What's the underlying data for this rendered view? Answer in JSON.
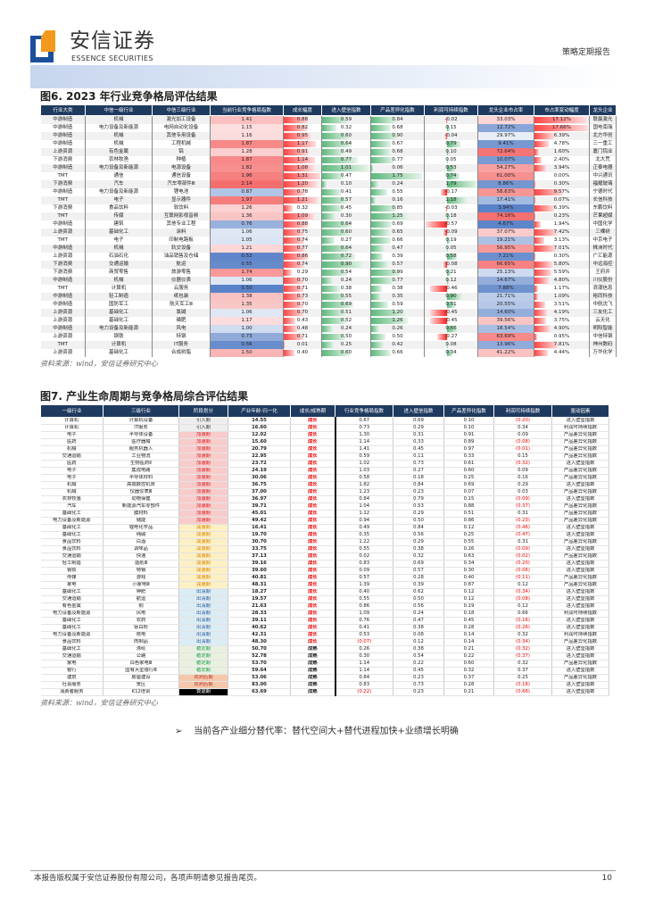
{
  "header": {
    "brand_cn": "安信证券",
    "brand_en": "ESSENCE SECURITIES",
    "report_type": "策略定期报告"
  },
  "fig6": {
    "title": "图6. 2023 年行业竞争格局评估结果",
    "source": "资料来源：wind，安信证券研究中心",
    "columns": [
      "行业大类",
      "中信一级行业",
      "中信三级行业",
      "当前行业竞争格局指数",
      "成长幅度",
      "进入壁垒指数",
      "产品差异化指数",
      "利润可持续指数",
      "龙头企业市占率",
      "市占率变动幅度",
      "龙头企业"
    ],
    "rows": [
      [
        "中游制造",
        "机械",
        "激光加工设备",
        "1.41",
        "0.88",
        "0.59",
        "0.84",
        "-0.02",
        "33.03%",
        "17.12%",
        "联赢激光"
      ],
      [
        "中游制造",
        "电力设备及新能源",
        "电网自动化设备",
        "1.15",
        "0.82",
        "0.32",
        "0.68",
        "0.15",
        "12.72%",
        "17.66%",
        "国电南瑞"
      ],
      [
        "中游制造",
        "机械",
        "其他专用设备",
        "1.16",
        "0.95",
        "0.60",
        "0.90",
        "-0.04",
        "29.97%",
        "6.39%",
        "北方华创"
      ],
      [
        "中游制造",
        "机械",
        "工程机械",
        "1.87",
        "1.17",
        "0.64",
        "0.67",
        "0.79",
        "9.41%",
        "4.78%",
        "三一重工"
      ],
      [
        "上游资源",
        "有色金属",
        "铝",
        "1.28",
        "0.91",
        "0.49",
        "0.68",
        "0.10",
        "72.64%",
        "1.60%",
        "厦门钨业"
      ],
      [
        "下游消费",
        "农林牧渔",
        "种植",
        "1.87",
        "1.14",
        "0.77",
        "0.77",
        "0.05",
        "10.07%",
        "2.40%",
        "北大荒"
      ],
      [
        "中游制造",
        "电力设备及新能源",
        "电源设备",
        "1.82",
        "1.08",
        "1.01",
        "0.06",
        "0.53",
        "54.27%",
        "3.94%",
        "正泰电器"
      ],
      [
        "TMT",
        "通信",
        "通信设备",
        "1.96",
        "1.31",
        "0.47",
        "1.75",
        "0.74",
        "61.00%",
        "0.00%",
        "中兴通讯"
      ],
      [
        "下游消费",
        "汽车",
        "汽车零部件Ⅲ",
        "2.14",
        "1.20",
        "0.10",
        "0.24",
        "1.79",
        "8.86%",
        "0.30%",
        "福耀玻璃"
      ],
      [
        "中游制造",
        "电力设备及新能源",
        "锂电池",
        "0.87",
        "0.78",
        "0.41",
        "0.55",
        "-0.17",
        "58.63%",
        "9.57%",
        "宁德时代"
      ],
      [
        "TMT",
        "电子",
        "显示器件",
        "1.97",
        "1.21",
        "0.57",
        "0.16",
        "1.18",
        "17.41%",
        "0.07%",
        "长信科技"
      ],
      [
        "下游消费",
        "食品饮料",
        "软饮料",
        "1.26",
        "0.32",
        "0.45",
        "0.85",
        "-0.03",
        "3.94%",
        "6.39%",
        "东鹏饮料"
      ],
      [
        "TMT",
        "传媒",
        "互联网影视音频",
        "1.36",
        "1.09",
        "0.30",
        "1.25",
        "0.18",
        "74.16%",
        "0.23%",
        "芒果超媒"
      ],
      [
        "中游制造",
        "建筑",
        "其他专业工程",
        "0.76",
        "0.88",
        "0.64",
        "0.69",
        "-0.57",
        "4.67%",
        "1.94%",
        "中国化学"
      ],
      [
        "上游资源",
        "基础化工",
        "涂料",
        "1.06",
        "0.75",
        "0.60",
        "0.65",
        "-0.09",
        "37.07%",
        "7.42%",
        "三棵树"
      ],
      [
        "TMT",
        "电子",
        "印制电路板",
        "1.05",
        "0.74",
        "0.27",
        "0.66",
        "0.19",
        "19.21%",
        "3.13%",
        "中京电子"
      ],
      [
        "中游制造",
        "机械",
        "轨交设备",
        "1.21",
        "0.77",
        "0.64",
        "0.47",
        "0.05",
        "56.95%",
        "7.01%",
        "株洲时代"
      ],
      [
        "上游资源",
        "石油石化",
        "油品销售及仓储",
        "0.52",
        "0.86",
        "0.72",
        "0.39",
        "0.58",
        "7.21%",
        "0.30%",
        "广汇能源"
      ],
      [
        "下游消费",
        "交通运输",
        "航运",
        "0.55",
        "0.74",
        "0.90",
        "0.57",
        "-0.08",
        "66.65%",
        "5.80%",
        "中远海控"
      ],
      [
        "下游消费",
        "商贸零售",
        "旅游零售",
        "1.74",
        "0.29",
        "0.54",
        "0.99",
        "0.21",
        "25.13%",
        "5.59%",
        "王府井"
      ],
      [
        "中游制造",
        "机械",
        "仪器仪表",
        "1.06",
        "0.70",
        "0.24",
        "0.77",
        "0.12",
        "14.67%",
        "4.80%",
        "川仪股份"
      ],
      [
        "TMT",
        "计算机",
        "云服务",
        "0.50",
        "0.71",
        "0.38",
        "0.38",
        "-0.46",
        "7.88%",
        "1.17%",
        "浪潮信息"
      ],
      [
        "中游制造",
        "轻工制造",
        "纸包装",
        "1.38",
        "0.73",
        "0.55",
        "0.35",
        "0.90",
        "21.71%",
        "1.09%",
        "裕同科技"
      ],
      [
        "中游制造",
        "国防军工",
        "航天军工Ⅲ",
        "1.35",
        "0.70",
        "0.69",
        "0.59",
        "0.51",
        "20.55%",
        "3.51%",
        "中航沈飞"
      ],
      [
        "上游资源",
        "基础化工",
        "氯碱",
        "1.06",
        "0.70",
        "0.51",
        "1.20",
        "-0.45",
        "14.60%",
        "4.19%",
        "三友化工"
      ],
      [
        "上游资源",
        "基础化工",
        "磷肥",
        "1.17",
        "0.43",
        "0.52",
        "1.26",
        "-0.45",
        "39.56%",
        "3.75%",
        "云天化"
      ],
      [
        "中游制造",
        "电力设备及新能源",
        "风电",
        "1.00",
        "0.48",
        "0.24",
        "0.26",
        "0.66",
        "18.54%",
        "4.90%",
        "明阳智能"
      ],
      [
        "上游资源",
        "钢铁",
        "特钢",
        "0.73",
        "0.71",
        "0.50",
        "0.50",
        "-0.27",
        "63.69%",
        "0.95%",
        "中信特钢"
      ],
      [
        "TMT",
        "计算机",
        "IT服务",
        "0.56",
        "0.01",
        "0.25",
        "0.42",
        "0.08",
        "13.96%",
        "7.81%",
        "神州数码"
      ],
      [
        "上游资源",
        "基础化工",
        "合成树脂",
        "1.50",
        "0.40",
        "0.60",
        "0.66",
        "0.34",
        "41.22%",
        "4.44%",
        "万华化学"
      ]
    ]
  },
  "fig7": {
    "title": "图7. 产业生命周期与竞争格局综合评估结果",
    "source": "资料来源：wind，安信证券研究中心",
    "columns": [
      "一级行业",
      "三级行业",
      "阶段划分",
      "产业年龄-归一化",
      "成长/成熟期",
      "行业竞争格局指数",
      "进入壁垒指数",
      "产品差异化指数",
      "利润可持续指数",
      "驱动因素"
    ],
    "stage_colors": {
      "引入期": "#eeeeee",
      "加速期": "#f9cccc",
      "减速期": "#fdf0c4",
      "出清期": "#dbecf4",
      "稳定期": "#e9f0e0",
      "成熟后期": "#f6c8ab",
      "衰退期": "#000000"
    },
    "stage_text_colors": {
      "引入期": "#333333",
      "加速期": "#e0242a",
      "减速期": "#e08a00",
      "出清期": "#2a5f9e",
      "稳定期": "#1aa04a",
      "成熟后期": "#c0392b",
      "衰退期": "#ffffff"
    },
    "rows": [
      [
        "计算机",
        "计算机设备",
        "引入期",
        "14.55",
        "成长",
        "0.67",
        "0.69",
        "0.10",
        "(0.20)",
        "进入壁垒指数"
      ],
      [
        "计算机",
        "IT服务",
        "引入期",
        "16.60",
        "成长",
        "0.73",
        "0.29",
        "0.10",
        "0.34",
        "利润可持续指数"
      ],
      [
        "电子",
        "半导体设备",
        "加速期",
        "12.02",
        "成长",
        "1.30",
        "0.31",
        "0.91",
        "0.09",
        "产品差异化指数"
      ],
      [
        "医药",
        "医疗器械",
        "加速期",
        "15.60",
        "成长",
        "1.14",
        "0.33",
        "0.89",
        "(0.08)",
        "产品差异化指数"
      ],
      [
        "机械",
        "服务机器人",
        "加速期",
        "20.79",
        "成长",
        "1.41",
        "0.45",
        "0.97",
        "(0.01)",
        "产品差异化指数"
      ],
      [
        "交通运输",
        "工业物流",
        "加速期",
        "22.95",
        "成长",
        "0.59",
        "0.11",
        "0.33",
        "0.15",
        "产品差异化指数"
      ],
      [
        "医药",
        "生物医药Ⅱ",
        "加速期",
        "23.72",
        "成长",
        "1.02",
        "0.73",
        "0.61",
        "(0.32)",
        "进入壁垒指数"
      ],
      [
        "电子",
        "集成电路",
        "加速期",
        "24.19",
        "成长",
        "1.03",
        "0.27",
        "0.60",
        "0.09",
        "产品差异化指数"
      ],
      [
        "电子",
        "半导体材料",
        "加速期",
        "30.06",
        "成长",
        "0.58",
        "0.18",
        "0.25",
        "0.16",
        "产品差异化指数"
      ],
      [
        "机械",
        "高端数控机床",
        "加速期",
        "36.75",
        "成长",
        "1.82",
        "0.84",
        "0.69",
        "0.29",
        "进入壁垒指数"
      ],
      [
        "机械",
        "仪器仪表Ⅲ",
        "加速期",
        "37.00",
        "成长",
        "1.23",
        "0.23",
        "0.07",
        "0.03",
        "产品差异化指数"
      ],
      [
        "农林牧渔",
        "动物保健",
        "加速期",
        "36.97",
        "成长",
        "0.84",
        "0.79",
        "0.15",
        "(0.09)",
        "进入壁垒指数"
      ],
      [
        "汽车",
        "新能源汽车零部件",
        "加速期",
        "39.71",
        "成长",
        "1.04",
        "0.53",
        "0.88",
        "(0.37)",
        "产品差异化指数"
      ],
      [
        "基础化工",
        "膜材料",
        "加速期",
        "45.01",
        "成长",
        "1.12",
        "0.29",
        "0.51",
        "0.31",
        "产品差异化指数"
      ],
      [
        "电力设备及新能源",
        "储能",
        "加速期",
        "49.42",
        "成长",
        "0.94",
        "0.50",
        "0.86",
        "(0.23)",
        "产品差异化指数"
      ],
      [
        "基础化工",
        "锂电化学品",
        "减速期",
        "16.41",
        "成长",
        "0.49",
        "0.84",
        "0.12",
        "(0.46)",
        "进入壁垒指数"
      ],
      [
        "基础化工",
        "纯碱",
        "减速期",
        "19.70",
        "成长",
        "0.35",
        "0.56",
        "0.25",
        "(0.47)",
        "进入壁垒指数"
      ],
      [
        "食品饮料",
        "白酒",
        "减速期",
        "30.70",
        "成长",
        "1.22",
        "0.29",
        "0.55",
        "0.31",
        "产品差异化指数"
      ],
      [
        "食品饮料",
        "调味品",
        "减速期",
        "33.75",
        "成长",
        "0.55",
        "0.38",
        "0.26",
        "(0.09)",
        "进入壁垒指数"
      ],
      [
        "交通运输",
        "快递",
        "减速期",
        "37.13",
        "成长",
        "0.02",
        "0.32",
        "0.63",
        "(0.02)",
        "产品差异化指数"
      ],
      [
        "轻工制造",
        "造纸Ⅲ",
        "减速期",
        "39.16",
        "成长",
        "0.83",
        "0.69",
        "0.34",
        "(0.20)",
        "进入壁垒指数"
      ],
      [
        "钢铁",
        "特钢",
        "减速期",
        "39.60",
        "成长",
        "0.09",
        "0.57",
        "0.30",
        "(0.06)",
        "进入壁垒指数"
      ],
      [
        "传媒",
        "游戏",
        "减速期",
        "40.81",
        "成长",
        "0.57",
        "0.28",
        "0.40",
        "(0.11)",
        "产品差异化指数"
      ],
      [
        "家电",
        "小家电Ⅲ",
        "减速期",
        "48.31",
        "成长",
        "1.39",
        "0.39",
        "0.87",
        "0.12",
        "产品差异化指数"
      ],
      [
        "基础化工",
        "钾肥",
        "出清期",
        "18.27",
        "成长",
        "0.40",
        "0.62",
        "0.12",
        "(0.34)",
        "进入壁垒指数"
      ],
      [
        "交通运输",
        "航运",
        "出清期",
        "19.57",
        "成长",
        "0.55",
        "0.50",
        "0.12",
        "(0.08)",
        "进入壁垒指数"
      ],
      [
        "有色金属",
        "铜",
        "出清期",
        "21.63",
        "成长",
        "0.86",
        "0.56",
        "0.19",
        "0.12",
        "进入壁垒指数"
      ],
      [
        "电力设备及新能源",
        "风电",
        "出清期",
        "28.33",
        "成长",
        "1.09",
        "0.24",
        "0.18",
        "0.66",
        "利润可持续指数"
      ],
      [
        "基础化工",
        "农药",
        "出清期",
        "39.11",
        "成长",
        "0.76",
        "0.47",
        "0.45",
        "(0.16)",
        "进入壁垒指数"
      ],
      [
        "基础化工",
        "钛白粉",
        "出清期",
        "40.62",
        "成长",
        "0.41",
        "0.38",
        "0.28",
        "(0.26)",
        "进入壁垒指数"
      ],
      [
        "电力设备及新能源",
        "核电",
        "出清期",
        "42.31",
        "成长",
        "0.53",
        "0.08",
        "0.14",
        "0.32",
        "利润可持续指数"
      ],
      [
        "食品饮料",
        "肉制品",
        "出清期",
        "48.30",
        "成长",
        "(0.07)",
        "0.12",
        "0.14",
        "(0.34)",
        "产品差异化指数"
      ],
      [
        "基础化工",
        "涤纶",
        "稳定期",
        "50.70",
        "成熟",
        "0.26",
        "0.38",
        "0.21",
        "(0.32)",
        "进入壁垒指数"
      ],
      [
        "交通运输",
        "公路",
        "稳定期",
        "52.78",
        "成熟",
        "0.30",
        "0.54",
        "0.22",
        "(0.37)",
        "进入壁垒指数"
      ],
      [
        "家电",
        "白色家电Ⅲ",
        "稳定期",
        "53.70",
        "成熟",
        "1.14",
        "0.22",
        "0.60",
        "0.32",
        "产品差异化指数"
      ],
      [
        "银行",
        "国有大型银行Ⅲ",
        "稳定期",
        "59.64",
        "成熟",
        "1.14",
        "0.45",
        "0.32",
        "0.37",
        "进入壁垒指数"
      ],
      [
        "建筑",
        "房屋建设",
        "成熟后期",
        "53.06",
        "成熟",
        "0.84",
        "0.23",
        "0.37",
        "0.25",
        "产品差异化指数"
      ],
      [
        "社会服务",
        "景区",
        "成熟后期",
        "83.00",
        "成熟",
        "0.83",
        "0.73",
        "0.28",
        "(0.18)",
        "进入壁垒指数"
      ],
      [
        "消费者服务",
        "K12培训",
        "衰退期",
        "63.69",
        "成熟",
        "(0.22)",
        "0.23",
        "0.21",
        "(0.66)",
        "进入壁垒指数"
      ]
    ]
  },
  "bullet": {
    "marker": "➢",
    "text": "当前各产业细分替代率：替代空间大+替代进程加快+业绩增长明确"
  },
  "footer": {
    "disclaimer": "本报告版权属于安信证券股份有限公司，各项声明请参见报告尾页。",
    "page": "10"
  }
}
